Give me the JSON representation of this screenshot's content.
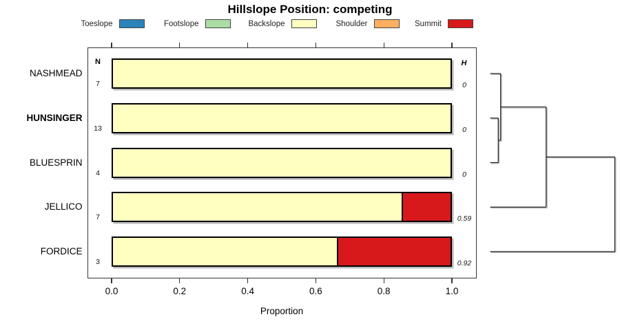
{
  "title": "Hillslope Position: competing",
  "columns": {
    "n_header": "N",
    "h_header": "H"
  },
  "legend": {
    "items": [
      {
        "label": "Toeslope",
        "color": "#2B83BA"
      },
      {
        "label": "Footslope",
        "color": "#ABDDA4"
      },
      {
        "label": "Backslope",
        "color": "#FFFFBF"
      },
      {
        "label": "Shoulder",
        "color": "#FDAE61"
      },
      {
        "label": "Summit",
        "color": "#D7191C"
      }
    ]
  },
  "chart_data": {
    "type": "bar",
    "orientation": "horizontal-stacked",
    "title": "Hillslope Position: competing",
    "xlabel": "Proportion",
    "xlim": [
      0,
      1
    ],
    "x_tick_labels": [
      "0.0",
      "0.2",
      "0.4",
      "0.6",
      "0.8",
      "1.0"
    ],
    "categories": [
      "NASHMEAD",
      "HUNSINGER",
      "BLUESPRIN",
      "JELLICO",
      "FORDICE"
    ],
    "categories_bold": [
      false,
      true,
      false,
      false,
      false
    ],
    "n_values": [
      "7",
      "13",
      "4",
      "7",
      "3"
    ],
    "h_values": [
      "0",
      "0",
      "0",
      "0.59",
      "0.92"
    ],
    "series": [
      {
        "name": "Toeslope",
        "color": "#2B83BA",
        "values": [
          0,
          0,
          0,
          0,
          0
        ]
      },
      {
        "name": "Footslope",
        "color": "#ABDDA4",
        "values": [
          0,
          0,
          0,
          0,
          0
        ]
      },
      {
        "name": "Backslope",
        "color": "#FFFFBF",
        "values": [
          1.0,
          1.0,
          1.0,
          0.857,
          0.667
        ]
      },
      {
        "name": "Shoulder",
        "color": "#FDAE61",
        "values": [
          0,
          0,
          0,
          0,
          0
        ]
      },
      {
        "name": "Summit",
        "color": "#D7191C",
        "values": [
          0,
          0,
          0,
          0.143,
          0.333
        ]
      }
    ],
    "dendrogram": {
      "leaves": [
        "NASHMEAD",
        "HUNSINGER",
        "BLUESPRIN",
        "JELLICO",
        "FORDICE"
      ],
      "height_scale": "relative",
      "merges": [
        {
          "id": "m1",
          "a": "HUNSINGER",
          "b": "BLUESPRIN",
          "height": 0.065
        },
        {
          "id": "m2",
          "a": "NASHMEAD",
          "b": "m1",
          "height": 0.084
        },
        {
          "id": "m3",
          "a": "m2",
          "b": "JELLICO",
          "height": 0.449
        },
        {
          "id": "m4",
          "a": "m3",
          "b": "FORDICE",
          "height": 1.0
        }
      ]
    }
  }
}
